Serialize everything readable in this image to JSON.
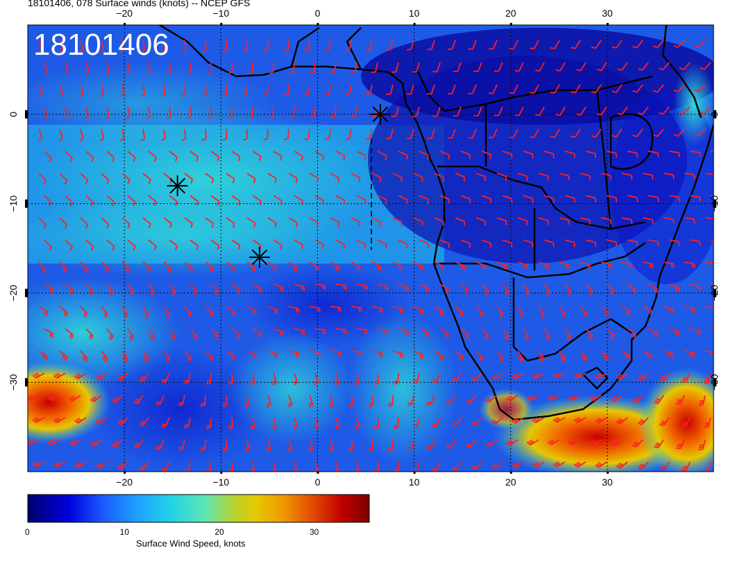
{
  "title": "18101406, 078 Surface winds (knots) -- NCEP GFS",
  "map_label": "18101406",
  "colorbar": {
    "title": "Surface Wind Speed, knots",
    "ticks": [
      "0",
      "10",
      "20",
      "30"
    ],
    "tick_values": [
      0,
      10,
      20,
      30
    ],
    "range": [
      0,
      36
    ],
    "colors": [
      "#00008b",
      "#0000cd",
      "#1e50ff",
      "#1e90ff",
      "#20c8e6",
      "#30e0c8",
      "#7fd89a",
      "#c8d020",
      "#f0a000",
      "#e04000",
      "#c00000",
      "#800000"
    ]
  },
  "axes": {
    "lon_ticks": [
      "−20",
      "−10",
      "0",
      "10",
      "20",
      "30"
    ],
    "lon_values": [
      -20,
      -10,
      0,
      10,
      20,
      30
    ],
    "lat_ticks": [
      "0",
      "−10",
      "−20",
      "−30"
    ],
    "lat_values": [
      0,
      -10,
      -20,
      -30
    ],
    "lon_range": [
      -30,
      41
    ],
    "lat_range": [
      -40,
      10
    ]
  },
  "markers": [
    {
      "name": "storm-marker-1",
      "lon": 6.5,
      "lat": 0.0
    },
    {
      "name": "storm-marker-2",
      "lon": -14.5,
      "lat": -8.0
    },
    {
      "name": "storm-marker-3",
      "lon": -6,
      "lat": -16
    }
  ],
  "colors": {
    "barb": "#ff2020",
    "coast": "#000000"
  }
}
